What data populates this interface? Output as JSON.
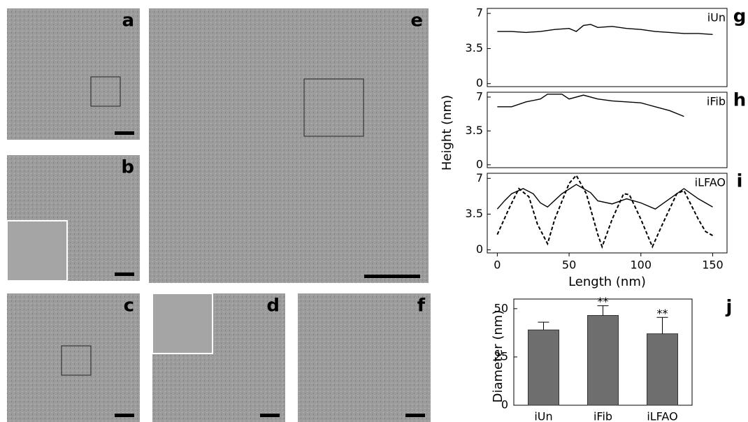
{
  "images": [
    {
      "label": "a"
    },
    {
      "label": "b"
    },
    {
      "label": "c"
    },
    {
      "label": "d"
    },
    {
      "label": "e"
    },
    {
      "label": "f"
    }
  ],
  "chart_data": [
    {
      "type": "line",
      "label": "g",
      "annotation": "iUn",
      "xlim": [
        -7,
        160
      ],
      "ylim": [
        -0.3,
        7.5
      ],
      "yticks": [
        0,
        3.5,
        7
      ],
      "series": [
        {
          "style": "solid",
          "color": "#000000",
          "x": [
            0,
            10,
            20,
            30,
            40,
            50,
            55,
            60,
            65,
            70,
            80,
            90,
            100,
            110,
            120,
            130,
            140,
            150
          ],
          "values": [
            5.2,
            5.2,
            5.1,
            5.2,
            5.4,
            5.5,
            5.2,
            5.8,
            5.9,
            5.6,
            5.7,
            5.5,
            5.4,
            5.2,
            5.1,
            5.0,
            5.0,
            4.9
          ]
        }
      ]
    },
    {
      "type": "line",
      "label": "h",
      "annotation": "iFib",
      "ylabel": "Height (nm)",
      "xlim": [
        -7,
        160
      ],
      "ylim": [
        -0.3,
        7.5
      ],
      "yticks": [
        0,
        3.5,
        7
      ],
      "series": [
        {
          "style": "solid",
          "color": "#000000",
          "x": [
            0,
            10,
            20,
            30,
            35,
            45,
            50,
            60,
            70,
            80,
            90,
            100,
            105,
            110,
            120,
            130
          ],
          "values": [
            6.0,
            6.0,
            6.5,
            6.8,
            7.3,
            7.3,
            6.8,
            7.2,
            6.8,
            6.6,
            6.5,
            6.4,
            6.2,
            6.0,
            5.6,
            5.0
          ]
        }
      ]
    },
    {
      "type": "line",
      "label": "i",
      "annotation": "iLFAO",
      "xlabel": "Length (nm)",
      "xlim": [
        -7,
        160
      ],
      "ylim": [
        -0.3,
        7.5
      ],
      "yticks": [
        0,
        3.5,
        7
      ],
      "xticks": [
        0,
        50,
        100,
        150
      ],
      "series": [
        {
          "style": "solid",
          "color": "#000000",
          "x": [
            0,
            5,
            10,
            18,
            25,
            30,
            35,
            45,
            55,
            65,
            70,
            80,
            90,
            100,
            110,
            120,
            130,
            140,
            150
          ],
          "values": [
            4.0,
            4.8,
            5.5,
            6.0,
            5.5,
            4.6,
            4.2,
            5.5,
            6.4,
            5.6,
            4.8,
            4.5,
            5.0,
            4.6,
            4.0,
            5.0,
            6.0,
            5.0,
            4.2
          ]
        },
        {
          "style": "dashed",
          "color": "#000000",
          "x": [
            0,
            8,
            15,
            22,
            28,
            35,
            40,
            50,
            55,
            62,
            70,
            73,
            80,
            88,
            92,
            100,
            108,
            115,
            125,
            130,
            140,
            145,
            150
          ],
          "values": [
            1.5,
            4.0,
            6.0,
            5.2,
            2.5,
            0.6,
            3.0,
            6.5,
            7.3,
            5.5,
            1.5,
            0.3,
            3.0,
            5.5,
            5.4,
            3.0,
            0.3,
            2.5,
            5.5,
            5.8,
            3.0,
            1.8,
            1.4
          ]
        }
      ]
    },
    {
      "type": "bar",
      "label": "j",
      "ylabel": "Diameter (nm)",
      "color": "#6e6e6e",
      "categories": [
        "iUn",
        "iFib",
        "iLFAO"
      ],
      "values": [
        39,
        46.5,
        37
      ],
      "errors": [
        4,
        5,
        8.5
      ],
      "significance": [
        null,
        "**",
        "**"
      ],
      "ylim": [
        0,
        55
      ],
      "yticks": [
        0,
        25,
        50
      ]
    }
  ]
}
